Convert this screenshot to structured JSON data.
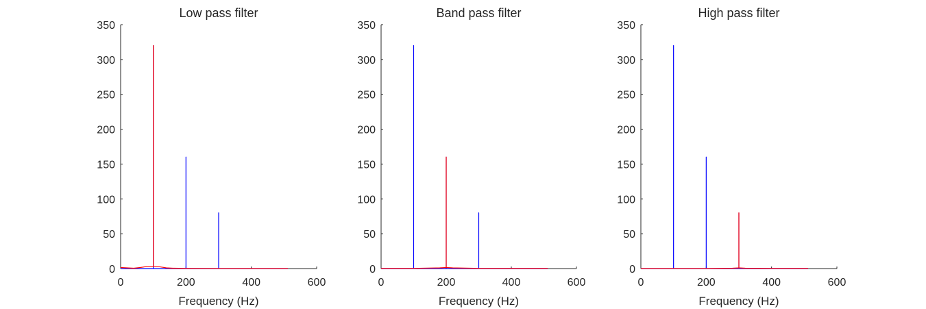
{
  "chart_data": [
    {
      "type": "line",
      "title": "Low pass filter",
      "xlabel": "Frequency (Hz)",
      "ylabel": "",
      "xlim": [
        0,
        600
      ],
      "ylim": [
        0,
        350
      ],
      "xticks": [
        0,
        200,
        400,
        600
      ],
      "yticks": [
        0,
        50,
        100,
        150,
        200,
        250,
        300,
        350
      ],
      "grid": false,
      "series": [
        {
          "color": "#0000ff",
          "x": [
            0,
            100,
            100,
            100,
            200,
            200,
            200,
            300,
            300,
            300,
            512
          ],
          "y": [
            0,
            0,
            320,
            0,
            0,
            160,
            0,
            0,
            80,
            0,
            0
          ]
        },
        {
          "color": "#ff0000",
          "x": [
            0,
            20,
            40,
            60,
            80,
            100,
            100,
            100,
            120,
            140,
            160,
            200,
            300,
            400,
            512
          ],
          "y": [
            1.5,
            1,
            0.5,
            1.5,
            3,
            3,
            320,
            3,
            2.5,
            1,
            0.5,
            0.3,
            0.2,
            0.2,
            0.2
          ]
        }
      ]
    },
    {
      "type": "line",
      "title": "Band pass filter",
      "xlabel": "Frequency (Hz)",
      "ylabel": "",
      "xlim": [
        0,
        600
      ],
      "ylim": [
        0,
        350
      ],
      "xticks": [
        0,
        200,
        400,
        600
      ],
      "yticks": [
        0,
        50,
        100,
        150,
        200,
        250,
        300,
        350
      ],
      "grid": false,
      "series": [
        {
          "color": "#0000ff",
          "x": [
            0,
            100,
            100,
            100,
            200,
            200,
            200,
            300,
            300,
            300,
            512
          ],
          "y": [
            0,
            0,
            320,
            0,
            0,
            160,
            0,
            0,
            80,
            0,
            0
          ]
        },
        {
          "color": "#ff0000",
          "x": [
            0,
            100,
            180,
            200,
            200,
            200,
            220,
            300,
            400,
            512
          ],
          "y": [
            0.3,
            0.3,
            1,
            1.5,
            160,
            1.5,
            1,
            0.3,
            0.3,
            0.3
          ]
        }
      ]
    },
    {
      "type": "line",
      "title": "High pass filter",
      "xlabel": "Frequency (Hz)",
      "ylabel": "",
      "xlim": [
        0,
        600
      ],
      "ylim": [
        0,
        350
      ],
      "xticks": [
        0,
        200,
        400,
        600
      ],
      "yticks": [
        0,
        50,
        100,
        150,
        200,
        250,
        300,
        350
      ],
      "grid": false,
      "series": [
        {
          "color": "#0000ff",
          "x": [
            0,
            100,
            100,
            100,
            200,
            200,
            200,
            300,
            300,
            300,
            512
          ],
          "y": [
            0,
            0,
            320,
            0,
            0,
            160,
            0,
            0,
            80,
            0,
            0
          ]
        },
        {
          "color": "#ff0000",
          "x": [
            0,
            200,
            280,
            300,
            300,
            300,
            320,
            400,
            512
          ],
          "y": [
            0.2,
            0.2,
            0.5,
            1,
            80,
            1,
            0.5,
            0.3,
            0.3
          ]
        }
      ]
    }
  ]
}
